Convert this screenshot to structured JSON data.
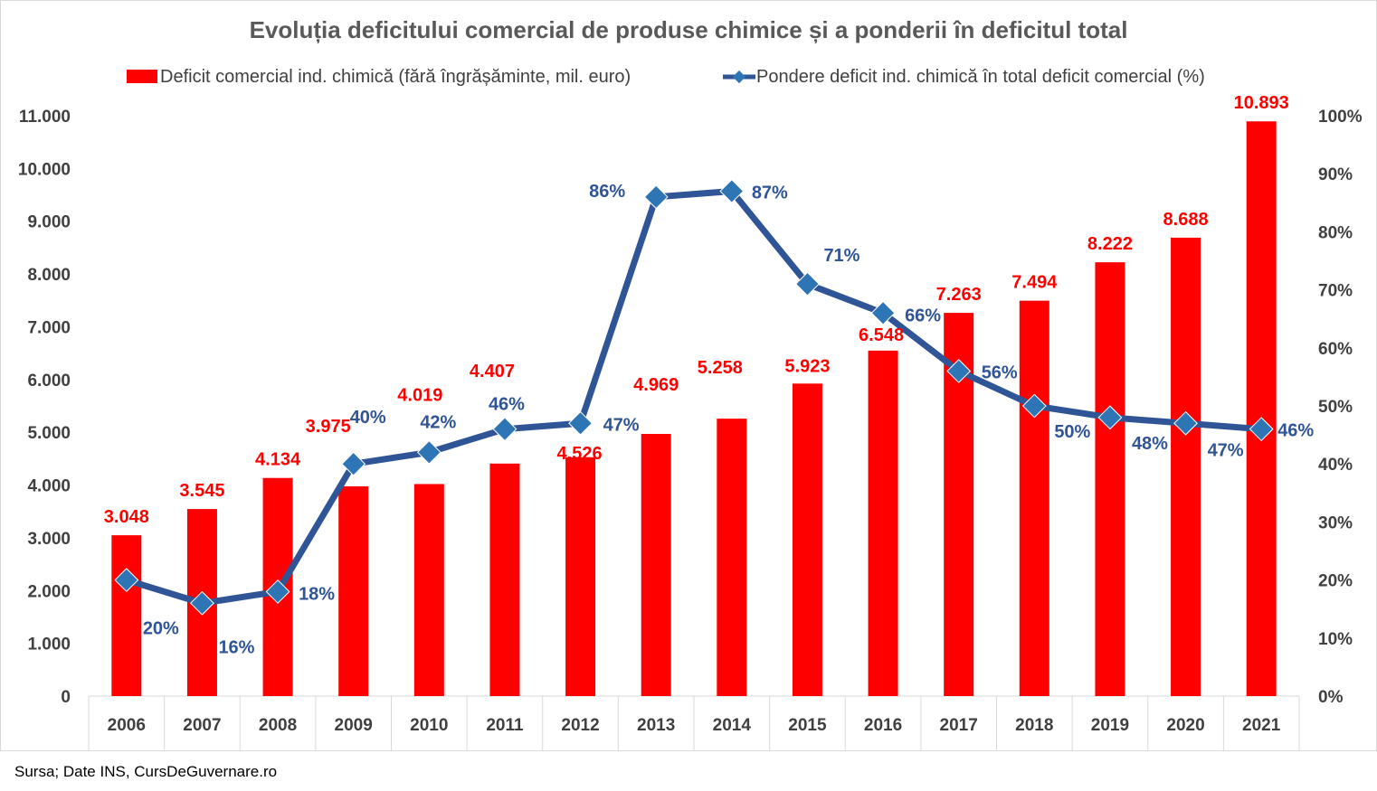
{
  "chart_data": {
    "type": "bar",
    "title": "Evoluția deficitului comercial de produse chimice și a ponderii în deficitul total",
    "categories": [
      "2006",
      "2007",
      "2008",
      "2009",
      "2010",
      "2011",
      "2012",
      "2013",
      "2014",
      "2015",
      "2016",
      "2017",
      "2018",
      "2019",
      "2020",
      "2021"
    ],
    "series": [
      {
        "name": "Deficit comercial ind. chimică (fără îngrășăminte, mil. euro)",
        "type": "bar",
        "axis": "left",
        "color": "#ff0000",
        "values": [
          3048,
          3545,
          4134,
          3975,
          4019,
          4407,
          4526,
          4969,
          5258,
          5923,
          6548,
          7263,
          7494,
          8222,
          8688,
          10893
        ],
        "labels": [
          "3.048",
          "3.545",
          "4.134",
          "3.975",
          "4.019",
          "4.407",
          "4.526",
          "4.969",
          "5.258",
          "5.923",
          "6.548",
          "7.263",
          "7.494",
          "8.222",
          "8.688",
          "10.893"
        ]
      },
      {
        "name": "Pondere deficit ind. chimică  în total deficit comercial (%)",
        "type": "line",
        "axis": "right",
        "color": "#2f5597",
        "marker_color": "#2e75b6",
        "values": [
          20,
          16,
          18,
          40,
          42,
          46,
          47,
          86,
          87,
          71,
          66,
          56,
          50,
          48,
          47,
          46
        ],
        "labels": [
          "20%",
          "16%",
          "18%",
          "40%",
          "42%",
          "46%",
          "47%",
          "86%",
          "87%",
          "71%",
          "66%",
          "56%",
          "50%",
          "48%",
          "47%",
          "46%"
        ]
      }
    ],
    "ylim": [
      0,
      11000
    ],
    "y_ticks": [
      "0",
      "1.000",
      "2.000",
      "3.000",
      "4.000",
      "5.000",
      "6.000",
      "7.000",
      "8.000",
      "9.000",
      "10.000",
      "11.000"
    ],
    "y2lim": [
      0,
      100
    ],
    "y2_ticks": [
      "0%",
      "10%",
      "20%",
      "30%",
      "40%",
      "50%",
      "60%",
      "70%",
      "80%",
      "90%",
      "100%"
    ],
    "legend_position": "top",
    "grid": false,
    "label_color_bar": "#ff0000",
    "label_color_line": "#2f5597",
    "axis_label_color": "#404040"
  },
  "source": "Sursa; Date INS, CursDeGuvernare.ro"
}
